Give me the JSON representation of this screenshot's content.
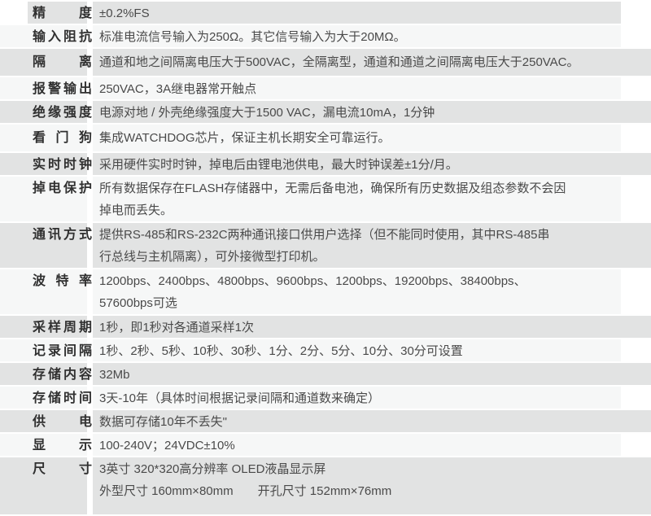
{
  "table": {
    "rows": [
      {
        "label": "精度",
        "lines": [
          "±0.2%FS"
        ]
      },
      {
        "label": "输入阻抗",
        "lines": [
          "标准电流信号输入为250Ω。其它信号输入为大于20MΩ。"
        ]
      },
      {
        "label": "隔离",
        "lines": [
          "通道和地之间隔离电压大于500VAC，全隔离型，通道和通道之间隔离电压大于250VAC。"
        ]
      },
      {
        "label": "报警输出",
        "lines": [
          "250VAC，3A继电器常开触点"
        ]
      },
      {
        "label": "绝缘强度",
        "lines": [
          "电源对地 / 外壳绝缘强度大于1500 VAC，漏电流10mA，1分钟"
        ]
      },
      {
        "label": "看门狗",
        "lines": [
          "集成WATCHDOG芯片，保证主机长期安全可靠运行。"
        ]
      },
      {
        "label": "实时时钟",
        "lines": [
          "采用硬件实时时钟，掉电后由锂电池供电，最大时钟误差±1分/月。"
        ]
      },
      {
        "label": "掉电保护",
        "lines": [
          "所有数据保存在FLASH存储器中，无需后备电池，确保所有历史数据及组态参数不会因",
          "掉电而丢失。"
        ]
      },
      {
        "label": "通讯方式",
        "lines": [
          "提供RS-485和RS-232C两种通讯接口供用户选择（但不能同时使用，其中RS-485串",
          "行总线与主机隔离），可外接微型打印机。"
        ]
      },
      {
        "label": "波特率",
        "lines": [
          "1200bps、2400bps、4800bps、9600bps、1200bps、19200bps、38400bps、",
          "57600bps可选"
        ]
      },
      {
        "label": "采样周期",
        "lines": [
          "1秒，即1秒对各通道采样1次"
        ]
      },
      {
        "label": "记录间隔",
        "lines": [
          "1秒、2秒、5秒、10秒、30秒、1分、2分、5分、10分、30分可设置"
        ]
      },
      {
        "label": "存储内容",
        "lines": [
          "32Mb"
        ]
      },
      {
        "label": "存储时间",
        "lines": [
          "3天-10年（具体时间根据记录间隔和通道数来确定）"
        ]
      },
      {
        "label": "供电",
        "lines": [
          "数据可存储10年不丢失\""
        ]
      },
      {
        "label": "显示",
        "lines": [
          "100-240V；24VDC±10%"
        ]
      },
      {
        "label": "尺寸",
        "lines": [
          "3英寸 320*320高分辨率 OLED液晶显示屏",
          "外型尺寸 160mm×80mm　　开孔尺寸 152mm×76mm"
        ]
      }
    ]
  }
}
